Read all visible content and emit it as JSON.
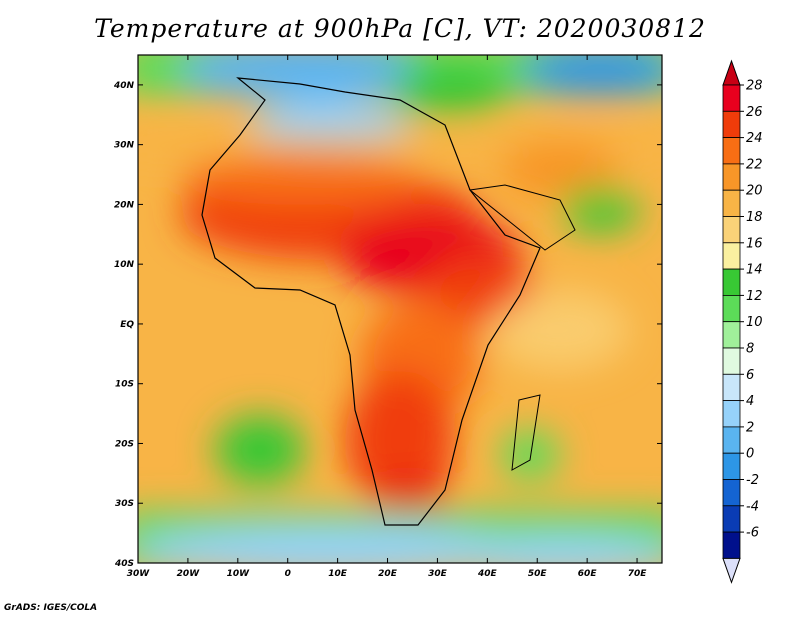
{
  "title": "Temperature at 900hPa [C], VT: 2020030812",
  "credit": "GrADS: IGES/COLA",
  "map": {
    "projection": "lat-lon",
    "lon_range": [
      -30,
      75
    ],
    "lat_range": [
      -40,
      45
    ],
    "lon_ticks": [
      {
        "value": -30,
        "label": "30W"
      },
      {
        "value": -20,
        "label": "20W"
      },
      {
        "value": -10,
        "label": "10W"
      },
      {
        "value": 0,
        "label": "0"
      },
      {
        "value": 10,
        "label": "10E"
      },
      {
        "value": 20,
        "label": "20E"
      },
      {
        "value": 30,
        "label": "30E"
      },
      {
        "value": 40,
        "label": "40E"
      },
      {
        "value": 50,
        "label": "50E"
      },
      {
        "value": 60,
        "label": "60E"
      },
      {
        "value": 70,
        "label": "70E"
      }
    ],
    "lat_ticks": [
      {
        "value": 40,
        "label": "40N"
      },
      {
        "value": 30,
        "label": "30N"
      },
      {
        "value": 20,
        "label": "20N"
      },
      {
        "value": 10,
        "label": "10N"
      },
      {
        "value": 0,
        "label": "EQ"
      },
      {
        "value": -10,
        "label": "10S"
      },
      {
        "value": -20,
        "label": "20S"
      },
      {
        "value": -30,
        "label": "30S"
      },
      {
        "value": -40,
        "label": "40S"
      }
    ]
  },
  "colorbar": {
    "levels": [
      "28",
      "26",
      "24",
      "22",
      "20",
      "18",
      "16",
      "14",
      "12",
      "10",
      "8",
      "6",
      "4",
      "2",
      "0",
      "-2",
      "-4",
      "-6"
    ],
    "colors": [
      "#e8001e",
      "#f03c0a",
      "#f86e14",
      "#f89628",
      "#f8b446",
      "#fad278",
      "#faf0a0",
      "#38c834",
      "#5cdc58",
      "#a0f09a",
      "#e0fae0",
      "#c8e6fa",
      "#96d2fa",
      "#5ab4f0",
      "#2d96e6",
      "#1464d2",
      "#0a3cb4",
      "#00108c"
    ],
    "top_arrow_color": "#c80014",
    "bottom_arrow_color": "#dce0fa"
  }
}
